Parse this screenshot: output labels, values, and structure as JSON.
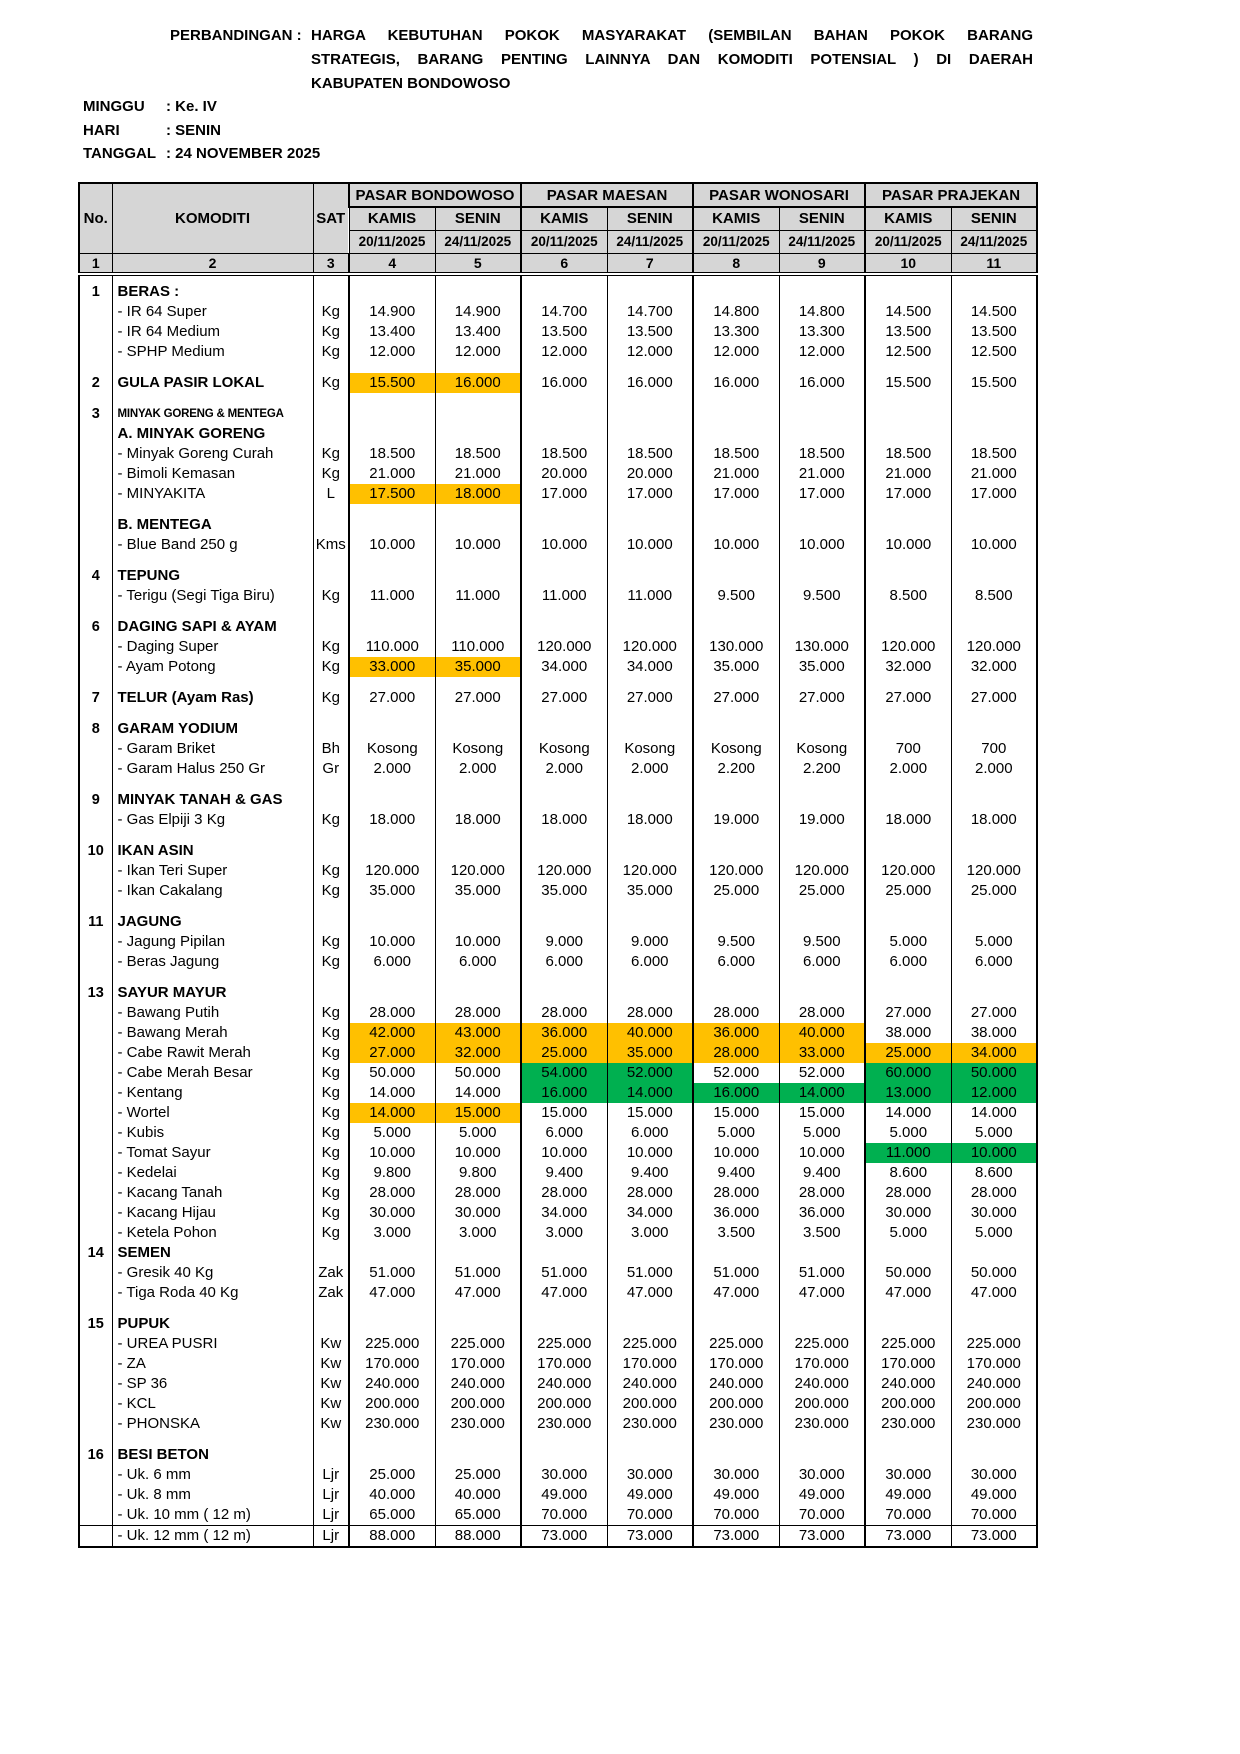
{
  "title": {
    "label": "PERBANDINGAN :",
    "lines": [
      "HARGA KEBUTUHAN POKOK MASYARAKAT (SEMBILAN BAHAN POKOK BARANG",
      "STRATEGIS, BARANG PENTING LAINNYA DAN KOMODITI POTENSIAL ) DI DAERAH",
      "KABUPATEN BONDOWOSO"
    ]
  },
  "meta": {
    "rows": [
      {
        "label": "MINGGU",
        "value": ": Ke. IV"
      },
      {
        "label": "HARI",
        "value": ": SENIN"
      },
      {
        "label": "TANGGAL",
        "value": ": 24 NOVEMBER 2025"
      }
    ]
  },
  "colors": {
    "highlight_orange": "#FFC000",
    "highlight_green": "#00B050",
    "header_bg": "#D6D6D6"
  },
  "table": {
    "head": {
      "no": "No.",
      "komoditi": "KOMODITI",
      "sat": "SAT",
      "markets": [
        "PASAR BONDOWOSO",
        "PASAR MAESAN",
        "PASAR WONOSARI",
        "PASAR PRAJEKAN"
      ],
      "days": [
        "KAMIS",
        "SENIN"
      ],
      "dates": [
        "20/11/2025",
        "24/11/2025"
      ],
      "col_numbers": [
        "1",
        "2",
        "3",
        "4",
        "5",
        "6",
        "7",
        "8",
        "9",
        "10",
        "11"
      ]
    },
    "rows": [
      {
        "t": "sp"
      },
      {
        "t": "sec",
        "no": "1",
        "label": "BERAS :"
      },
      {
        "t": "item",
        "label": "- IR 64 Super",
        "sat": "Kg",
        "v": [
          "14.900",
          "14.900",
          "14.700",
          "14.700",
          "14.800",
          "14.800",
          "14.500",
          "14.500"
        ]
      },
      {
        "t": "item",
        "label": "- IR 64 Medium",
        "sat": "Kg",
        "v": [
          "13.400",
          "13.400",
          "13.500",
          "13.500",
          "13.300",
          "13.300",
          "13.500",
          "13.500"
        ]
      },
      {
        "t": "item",
        "label": "- SPHP Medium",
        "sat": "Kg",
        "v": [
          "12.000",
          "12.000",
          "12.000",
          "12.000",
          "12.000",
          "12.000",
          "12.500",
          "12.500"
        ]
      },
      {
        "t": "sp"
      },
      {
        "t": "secitem",
        "no": "2",
        "label": "GULA PASIR LOKAL",
        "sat": "Kg",
        "v": [
          "15.500",
          "16.000",
          "16.000",
          "16.000",
          "16.000",
          "16.000",
          "15.500",
          "15.500"
        ],
        "h": [
          "o",
          "o",
          "",
          "",
          "",
          "",
          "",
          ""
        ]
      },
      {
        "t": "sp"
      },
      {
        "t": "sec",
        "no": "3",
        "label": "MINYAK GORENG & MENTEGA",
        "small": true
      },
      {
        "t": "sub",
        "label": "A. MINYAK GORENG"
      },
      {
        "t": "item",
        "label": "- Minyak Goreng Curah",
        "sat": "Kg",
        "v": [
          "18.500",
          "18.500",
          "18.500",
          "18.500",
          "18.500",
          "18.500",
          "18.500",
          "18.500"
        ]
      },
      {
        "t": "item",
        "label": "- Bimoli Kemasan",
        "sat": "Kg",
        "v": [
          "21.000",
          "21.000",
          "20.000",
          "20.000",
          "21.000",
          "21.000",
          "21.000",
          "21.000"
        ]
      },
      {
        "t": "item",
        "label": "- MINYAKITA",
        "sat": "L",
        "v": [
          "17.500",
          "18.000",
          "17.000",
          "17.000",
          "17.000",
          "17.000",
          "17.000",
          "17.000"
        ],
        "h": [
          "o",
          "o",
          "",
          "",
          "",
          "",
          "",
          ""
        ]
      },
      {
        "t": "sp"
      },
      {
        "t": "sub",
        "label": "B. MENTEGA"
      },
      {
        "t": "item",
        "label": "- Blue Band 250 g",
        "sat": "Kms",
        "v": [
          "10.000",
          "10.000",
          "10.000",
          "10.000",
          "10.000",
          "10.000",
          "10.000",
          "10.000"
        ]
      },
      {
        "t": "sp"
      },
      {
        "t": "sec",
        "no": "4",
        "label": "TEPUNG"
      },
      {
        "t": "item",
        "label": "- Terigu (Segi Tiga Biru)",
        "sat": "Kg",
        "v": [
          "11.000",
          "11.000",
          "11.000",
          "11.000",
          "9.500",
          "9.500",
          "8.500",
          "8.500"
        ]
      },
      {
        "t": "sp"
      },
      {
        "t": "sec",
        "no": "6",
        "label": "DAGING SAPI & AYAM"
      },
      {
        "t": "item",
        "label": "- Daging Super",
        "sat": "Kg",
        "v": [
          "110.000",
          "110.000",
          "120.000",
          "120.000",
          "130.000",
          "130.000",
          "120.000",
          "120.000"
        ]
      },
      {
        "t": "item",
        "label": "- Ayam Potong",
        "sat": "Kg",
        "v": [
          "33.000",
          "35.000",
          "34.000",
          "34.000",
          "35.000",
          "35.000",
          "32.000",
          "32.000"
        ],
        "h": [
          "o",
          "o",
          "",
          "",
          "",
          "",
          "",
          ""
        ]
      },
      {
        "t": "sp"
      },
      {
        "t": "secitem",
        "no": "7",
        "label": "TELUR (Ayam Ras)",
        "sat": "Kg",
        "v": [
          "27.000",
          "27.000",
          "27.000",
          "27.000",
          "27.000",
          "27.000",
          "27.000",
          "27.000"
        ]
      },
      {
        "t": "sp"
      },
      {
        "t": "sec",
        "no": "8",
        "label": "GARAM YODIUM"
      },
      {
        "t": "item",
        "label": "- Garam Briket",
        "sat": "Bh",
        "v": [
          "Kosong",
          "Kosong",
          "Kosong",
          "Kosong",
          "Kosong",
          "Kosong",
          "700",
          "700"
        ]
      },
      {
        "t": "item",
        "label": "- Garam Halus 250 Gr",
        "sat": "Gr",
        "v": [
          "2.000",
          "2.000",
          "2.000",
          "2.000",
          "2.200",
          "2.200",
          "2.000",
          "2.000"
        ]
      },
      {
        "t": "sp"
      },
      {
        "t": "sec",
        "no": "9",
        "label": "MINYAK TANAH & GAS"
      },
      {
        "t": "item",
        "label": "- Gas Elpiji 3 Kg",
        "sat": "Kg",
        "v": [
          "18.000",
          "18.000",
          "18.000",
          "18.000",
          "19.000",
          "19.000",
          "18.000",
          "18.000"
        ]
      },
      {
        "t": "sp"
      },
      {
        "t": "sec",
        "no": "10",
        "label": "IKAN ASIN"
      },
      {
        "t": "item",
        "label": "- Ikan Teri Super",
        "sat": "Kg",
        "v": [
          "120.000",
          "120.000",
          "120.000",
          "120.000",
          "120.000",
          "120.000",
          "120.000",
          "120.000"
        ]
      },
      {
        "t": "item",
        "label": "- Ikan Cakalang",
        "sat": "Kg",
        "v": [
          "35.000",
          "35.000",
          "35.000",
          "35.000",
          "25.000",
          "25.000",
          "25.000",
          "25.000"
        ]
      },
      {
        "t": "sp"
      },
      {
        "t": "sec",
        "no": "11",
        "label": "JAGUNG"
      },
      {
        "t": "item",
        "label": "- Jagung Pipilan",
        "sat": "Kg",
        "v": [
          "10.000",
          "10.000",
          "9.000",
          "9.000",
          "9.500",
          "9.500",
          "5.000",
          "5.000"
        ]
      },
      {
        "t": "item",
        "label": "- Beras Jagung",
        "sat": "Kg",
        "v": [
          "6.000",
          "6.000",
          "6.000",
          "6.000",
          "6.000",
          "6.000",
          "6.000",
          "6.000"
        ]
      },
      {
        "t": "sp"
      },
      {
        "t": "sec",
        "no": "13",
        "label": "SAYUR MAYUR"
      },
      {
        "t": "item",
        "label": "- Bawang Putih",
        "sat": "Kg",
        "v": [
          "28.000",
          "28.000",
          "28.000",
          "28.000",
          "28.000",
          "28.000",
          "27.000",
          "27.000"
        ]
      },
      {
        "t": "item",
        "label": "- Bawang Merah",
        "sat": "Kg",
        "v": [
          "42.000",
          "43.000",
          "36.000",
          "40.000",
          "36.000",
          "40.000",
          "38.000",
          "38.000"
        ],
        "h": [
          "o",
          "o",
          "o",
          "o",
          "o",
          "o",
          "",
          ""
        ]
      },
      {
        "t": "item",
        "label": "- Cabe Rawit Merah",
        "sat": "Kg",
        "v": [
          "27.000",
          "32.000",
          "25.000",
          "35.000",
          "28.000",
          "33.000",
          "25.000",
          "34.000"
        ],
        "h": [
          "o",
          "o",
          "o",
          "o",
          "o",
          "o",
          "o",
          "o"
        ]
      },
      {
        "t": "item",
        "label": "- Cabe Merah Besar",
        "sat": "Kg",
        "v": [
          "50.000",
          "50.000",
          "54.000",
          "52.000",
          "52.000",
          "52.000",
          "60.000",
          "50.000"
        ],
        "h": [
          "",
          "",
          "g",
          "g",
          "",
          "",
          "g",
          "g"
        ]
      },
      {
        "t": "item",
        "label": "- Kentang",
        "sat": "Kg",
        "v": [
          "14.000",
          "14.000",
          "16.000",
          "14.000",
          "16.000",
          "14.000",
          "13.000",
          "12.000"
        ],
        "h": [
          "",
          "",
          "g",
          "g",
          "g",
          "g",
          "g",
          "g"
        ]
      },
      {
        "t": "item",
        "label": "- Wortel",
        "sat": "Kg",
        "v": [
          "14.000",
          "15.000",
          "15.000",
          "15.000",
          "15.000",
          "15.000",
          "14.000",
          "14.000"
        ],
        "h": [
          "o",
          "o",
          "",
          "",
          "",
          "",
          "",
          ""
        ]
      },
      {
        "t": "item",
        "label": "- Kubis",
        "sat": "Kg",
        "v": [
          "5.000",
          "5.000",
          "6.000",
          "6.000",
          "5.000",
          "5.000",
          "5.000",
          "5.000"
        ]
      },
      {
        "t": "item",
        "label": "- Tomat Sayur",
        "sat": "Kg",
        "v": [
          "10.000",
          "10.000",
          "10.000",
          "10.000",
          "10.000",
          "10.000",
          "11.000",
          "10.000"
        ],
        "h": [
          "",
          "",
          "",
          "",
          "",
          "",
          "g",
          "g"
        ]
      },
      {
        "t": "item",
        "label": "- Kedelai",
        "sat": "Kg",
        "v": [
          "9.800",
          "9.800",
          "9.400",
          "9.400",
          "9.400",
          "9.400",
          "8.600",
          "8.600"
        ]
      },
      {
        "t": "item",
        "label": "- Kacang Tanah",
        "sat": "Kg",
        "v": [
          "28.000",
          "28.000",
          "28.000",
          "28.000",
          "28.000",
          "28.000",
          "28.000",
          "28.000"
        ]
      },
      {
        "t": "item",
        "label": "- Kacang Hijau",
        "sat": "Kg",
        "v": [
          "30.000",
          "30.000",
          "34.000",
          "34.000",
          "36.000",
          "36.000",
          "30.000",
          "30.000"
        ]
      },
      {
        "t": "item",
        "label": "- Ketela Pohon",
        "sat": "Kg",
        "v": [
          "3.000",
          "3.000",
          "3.000",
          "3.000",
          "3.500",
          "3.500",
          "5.000",
          "5.000"
        ]
      },
      {
        "t": "sec",
        "no": "14",
        "label": "SEMEN"
      },
      {
        "t": "item",
        "label": "- Gresik 40 Kg",
        "sat": "Zak",
        "v": [
          "51.000",
          "51.000",
          "51.000",
          "51.000",
          "51.000",
          "51.000",
          "50.000",
          "50.000"
        ]
      },
      {
        "t": "item",
        "label": "- Tiga Roda 40 Kg",
        "sat": "Zak",
        "v": [
          "47.000",
          "47.000",
          "47.000",
          "47.000",
          "47.000",
          "47.000",
          "47.000",
          "47.000"
        ]
      },
      {
        "t": "sp"
      },
      {
        "t": "sec",
        "no": "15",
        "label": "PUPUK"
      },
      {
        "t": "item",
        "label": "- UREA PUSRI",
        "sat": "Kw",
        "v": [
          "225.000",
          "225.000",
          "225.000",
          "225.000",
          "225.000",
          "225.000",
          "225.000",
          "225.000"
        ]
      },
      {
        "t": "item",
        "label": "- ZA",
        "sat": "Kw",
        "v": [
          "170.000",
          "170.000",
          "170.000",
          "170.000",
          "170.000",
          "170.000",
          "170.000",
          "170.000"
        ]
      },
      {
        "t": "item",
        "label": "- SP 36",
        "sat": "Kw",
        "v": [
          "240.000",
          "240.000",
          "240.000",
          "240.000",
          "240.000",
          "240.000",
          "240.000",
          "240.000"
        ]
      },
      {
        "t": "item",
        "label": "- KCL",
        "sat": "Kw",
        "v": [
          "200.000",
          "200.000",
          "200.000",
          "200.000",
          "200.000",
          "200.000",
          "200.000",
          "200.000"
        ]
      },
      {
        "t": "item",
        "label": "- PHONSKA",
        "sat": "Kw",
        "v": [
          "230.000",
          "230.000",
          "230.000",
          "230.000",
          "230.000",
          "230.000",
          "230.000",
          "230.000"
        ]
      },
      {
        "t": "sp"
      },
      {
        "t": "sec",
        "no": "16",
        "label": "BESI BETON"
      },
      {
        "t": "item",
        "label": "- Uk. 6 mm",
        "sat": "Ljr",
        "v": [
          "25.000",
          "25.000",
          "30.000",
          "30.000",
          "30.000",
          "30.000",
          "30.000",
          "30.000"
        ]
      },
      {
        "t": "item",
        "label": "- Uk. 8 mm",
        "sat": "Ljr",
        "v": [
          "40.000",
          "40.000",
          "49.000",
          "49.000",
          "49.000",
          "49.000",
          "49.000",
          "49.000"
        ]
      },
      {
        "t": "item",
        "label": "- Uk. 10 mm ( 12 m)",
        "sat": "Ljr",
        "v": [
          "65.000",
          "65.000",
          "70.000",
          "70.000",
          "70.000",
          "70.000",
          "70.000",
          "70.000"
        ]
      },
      {
        "t": "item",
        "label": "- Uk. 12 mm ( 12 m)",
        "sat": "Ljr",
        "v": [
          "88.000",
          "88.000",
          "73.000",
          "73.000",
          "73.000",
          "73.000",
          "73.000",
          "73.000"
        ],
        "bt": true
      }
    ]
  }
}
